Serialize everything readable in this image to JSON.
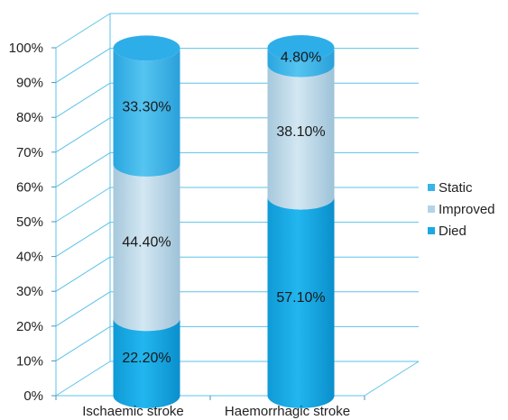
{
  "chart_data": {
    "type": "bar",
    "stacked": true,
    "percent_stacked": true,
    "style": "3d-cylinder",
    "categories": [
      "Ischaemic stroke",
      "Haemorrhagic stroke"
    ],
    "series": [
      {
        "name": "Died",
        "values": [
          22.2,
          57.1
        ],
        "labels": [
          "22.20%",
          "57.10%"
        ],
        "color": "#1aa9e3"
      },
      {
        "name": "Improved",
        "values": [
          44.4,
          38.1
        ],
        "labels": [
          "44.40%",
          "38.10%"
        ],
        "color": "#b3d4e6"
      },
      {
        "name": "Static",
        "values": [
          33.3,
          4.8
        ],
        "labels": [
          "33.30%",
          "4.80%"
        ],
        "color": "#3ab3e8"
      }
    ],
    "y_ticks": [
      "0%",
      "10%",
      "20%",
      "30%",
      "40%",
      "50%",
      "60%",
      "70%",
      "80%",
      "90%",
      "100%"
    ],
    "ylim": [
      0,
      100
    ],
    "grid": true,
    "grid_color": "#5bc3e8",
    "legend": {
      "placement": "right",
      "entries": [
        "Static",
        "Improved",
        "Died"
      ]
    },
    "title": "",
    "xlabel": "",
    "ylabel": ""
  }
}
